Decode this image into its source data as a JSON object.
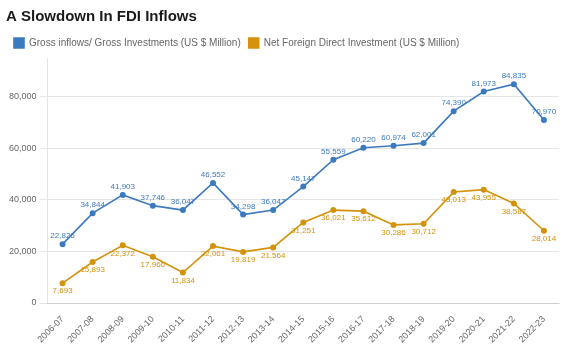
{
  "chart_data": {
    "type": "line",
    "title": "A Slowdown In FDI Inflows",
    "categories": [
      "2006-07",
      "2007-08",
      "2008-09",
      "2009-10",
      "2010-11",
      "2011-12",
      "2012-13",
      "2013-14",
      "2014-15",
      "2015-16",
      "2016-17",
      "2017-18",
      "2018-19",
      "2019-20",
      "2020-21",
      "2021-22",
      "2022-23"
    ],
    "series": [
      {
        "name": "Gross inflows/ Gross Investments (US $ Million)",
        "color": "#3c7abf",
        "values": [
          22826,
          34844,
          41903,
          37746,
          36047,
          46552,
          34298,
          36047,
          45147,
          55559,
          60220,
          60974,
          62001,
          74390,
          81973,
          84835,
          70970
        ],
        "value_labels": [
          "22,826",
          "34,844",
          "41,903",
          "37,746",
          "36,047",
          "46,552",
          "34,298",
          "36,047",
          "45,147",
          "55,559",
          "60,220",
          "60,974",
          "62,001",
          "74,390",
          "81,973",
          "84,835",
          "70,970"
        ]
      },
      {
        "name": "Net Foreign Direct Investment (US $ Million)",
        "color": "#d4920a",
        "values": [
          7693,
          15893,
          22372,
          17966,
          11834,
          22061,
          19819,
          21564,
          31251,
          36021,
          35612,
          30286,
          30712,
          43013,
          43955,
          38587,
          28014
        ],
        "value_labels": [
          "7,693",
          "15,893",
          "22,372",
          "17,966",
          "11,834",
          "22,061",
          "19,819",
          "21,564",
          "31,251",
          "36,021",
          "35,612",
          "30,286",
          "30,712",
          "43,013",
          "43,955",
          "38,587",
          "28,014"
        ]
      }
    ],
    "ylim": [
      0,
      95000
    ],
    "yticks": [
      0,
      {
        "value": 20000,
        "label": "20,000"
      },
      {
        "value": 40000,
        "label": "40,000"
      },
      {
        "value": 60000,
        "label": "60,000"
      },
      {
        "value": 80000,
        "label": "80,000"
      }
    ],
    "grid": true,
    "legend": "upper left",
    "data_labels": true,
    "marker": "circle"
  }
}
